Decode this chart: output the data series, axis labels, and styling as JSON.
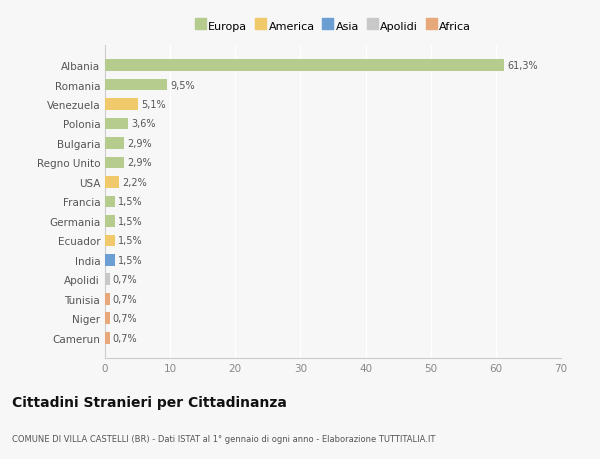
{
  "categories": [
    "Albania",
    "Romania",
    "Venezuela",
    "Polonia",
    "Bulgaria",
    "Regno Unito",
    "USA",
    "Francia",
    "Germania",
    "Ecuador",
    "India",
    "Apolidi",
    "Tunisia",
    "Niger",
    "Camerun"
  ],
  "values": [
    61.3,
    9.5,
    5.1,
    3.6,
    2.9,
    2.9,
    2.2,
    1.5,
    1.5,
    1.5,
    1.5,
    0.7,
    0.7,
    0.7,
    0.7
  ],
  "labels": [
    "61,3%",
    "9,5%",
    "5,1%",
    "3,6%",
    "2,9%",
    "2,9%",
    "2,2%",
    "1,5%",
    "1,5%",
    "1,5%",
    "1,5%",
    "0,7%",
    "0,7%",
    "0,7%",
    "0,7%"
  ],
  "colors": [
    "#b5cc8e",
    "#b5cc8e",
    "#f0c96a",
    "#b5cc8e",
    "#b5cc8e",
    "#b5cc8e",
    "#f0c96a",
    "#b5cc8e",
    "#b5cc8e",
    "#f0c96a",
    "#6b9fd4",
    "#c8c8c8",
    "#e8a87a",
    "#e8a87a",
    "#e8a87a"
  ],
  "legend_labels": [
    "Europa",
    "America",
    "Asia",
    "Apolidi",
    "Africa"
  ],
  "legend_colors": [
    "#b5cc8e",
    "#f0c96a",
    "#6b9fd4",
    "#c8c8c8",
    "#e8a87a"
  ],
  "title": "Cittadini Stranieri per Cittadinanza",
  "subtitle": "COMUNE DI VILLA CASTELLI (BR) - Dati ISTAT al 1° gennaio di ogni anno - Elaborazione TUTTITALIA.IT",
  "xlim": [
    0,
    70
  ],
  "xticks": [
    0,
    10,
    20,
    30,
    40,
    50,
    60,
    70
  ],
  "background_color": "#f7f7f7",
  "grid_color": "#ffffff",
  "bar_height": 0.6
}
